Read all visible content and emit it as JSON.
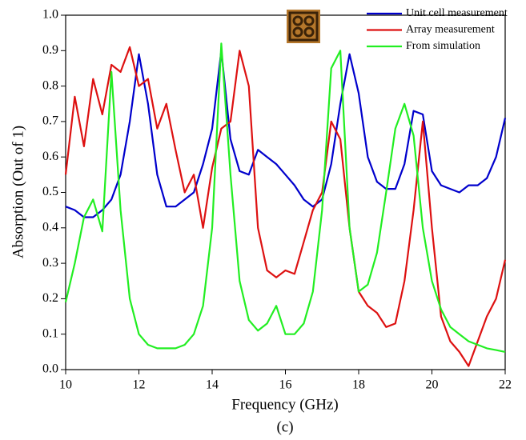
{
  "chart_data": {
    "type": "line",
    "xlabel": "Frequency (GHz)",
    "ylabel": "Absorption (Out of 1)",
    "caption": "(c)",
    "x": [
      10,
      10.25,
      10.5,
      10.75,
      11,
      11.25,
      11.5,
      11.75,
      12,
      12.25,
      12.5,
      12.75,
      13,
      13.25,
      13.5,
      13.75,
      14,
      14.25,
      14.5,
      14.75,
      15,
      15.25,
      15.5,
      15.75,
      16,
      16.25,
      16.5,
      16.75,
      17,
      17.25,
      17.5,
      17.75,
      18,
      18.25,
      18.5,
      18.75,
      19,
      19.25,
      19.5,
      19.75,
      20,
      20.25,
      20.5,
      20.75,
      21,
      21.25,
      21.5,
      21.75,
      22
    ],
    "series": [
      {
        "name": "Unit cell measurement",
        "color": "#0000cc",
        "values": [
          0.46,
          0.45,
          0.43,
          0.43,
          0.45,
          0.48,
          0.55,
          0.7,
          0.89,
          0.75,
          0.55,
          0.46,
          0.46,
          0.48,
          0.5,
          0.58,
          0.68,
          0.9,
          0.65,
          0.56,
          0.55,
          0.62,
          0.6,
          0.58,
          0.55,
          0.52,
          0.48,
          0.46,
          0.48,
          0.58,
          0.75,
          0.89,
          0.78,
          0.6,
          0.53,
          0.51,
          0.51,
          0.58,
          0.73,
          0.72,
          0.56,
          0.52,
          0.51,
          0.5,
          0.52,
          0.52,
          0.54,
          0.6,
          0.71
        ]
      },
      {
        "name": "Array measurement",
        "color": "#dd1111",
        "values": [
          0.55,
          0.77,
          0.63,
          0.82,
          0.72,
          0.86,
          0.84,
          0.91,
          0.8,
          0.82,
          0.68,
          0.75,
          0.62,
          0.5,
          0.55,
          0.4,
          0.57,
          0.68,
          0.7,
          0.9,
          0.8,
          0.4,
          0.28,
          0.26,
          0.28,
          0.27,
          0.36,
          0.45,
          0.5,
          0.7,
          0.65,
          0.4,
          0.22,
          0.18,
          0.16,
          0.12,
          0.13,
          0.25,
          0.45,
          0.7,
          0.4,
          0.15,
          0.08,
          0.05,
          0.01,
          0.08,
          0.15,
          0.2,
          0.31
        ]
      },
      {
        "name": "From simulation",
        "color": "#22ee22",
        "values": [
          0.19,
          0.3,
          0.43,
          0.48,
          0.39,
          0.84,
          0.45,
          0.2,
          0.1,
          0.07,
          0.06,
          0.06,
          0.06,
          0.07,
          0.1,
          0.18,
          0.4,
          0.92,
          0.55,
          0.25,
          0.14,
          0.11,
          0.13,
          0.18,
          0.1,
          0.1,
          0.13,
          0.22,
          0.45,
          0.85,
          0.9,
          0.4,
          0.22,
          0.24,
          0.33,
          0.5,
          0.68,
          0.75,
          0.66,
          0.4,
          0.25,
          0.17,
          0.12,
          0.1,
          0.08,
          0.07,
          0.06,
          0.055,
          0.05
        ]
      }
    ],
    "xlim": [
      10,
      22
    ],
    "xticks": [
      10,
      12,
      14,
      16,
      18,
      20,
      22
    ],
    "ylim": [
      0,
      1
    ],
    "yticks": [
      {
        "value": 0,
        "label": "0.0"
      },
      0.1,
      0.2,
      0.3,
      0.4,
      0.5,
      0.6,
      0.7,
      0.8,
      0.9,
      {
        "value": 1,
        "label": "1.0"
      }
    ],
    "legend": "upper right"
  }
}
